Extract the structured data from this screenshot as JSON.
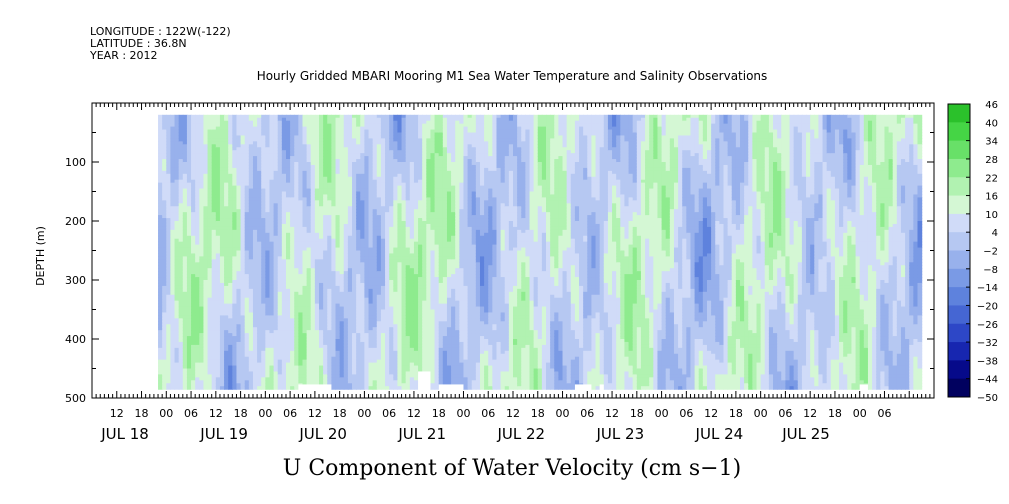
{
  "chart_data": {
    "type": "heatmap",
    "header_lines": [
      "LONGITUDE : 122W(-122)",
      "LATITUDE : 36.8N",
      "YEAR : 2012"
    ],
    "title": "Hourly Gridded MBARI Mooring M1 Sea Water Temperature and Salinity Observations",
    "ylabel": "DEPTH (m)",
    "bottom_title": "U Component of Water Velocity (cm s−1)",
    "y_axis": {
      "min": 0,
      "max": 500,
      "inverted": true,
      "data_top": 20,
      "data_bottom": 485,
      "ticks": [
        {
          "v": 100,
          "label": "100"
        },
        {
          "v": 200,
          "label": "200"
        },
        {
          "v": 300,
          "label": "300"
        },
        {
          "v": 400,
          "label": "400"
        },
        {
          "v": 500,
          "label": "500"
        }
      ]
    },
    "x_axis": {
      "start_hours": 0,
      "end_hours": 204,
      "data_start": 16,
      "data_end": 201,
      "hour_ticks": [
        {
          "h": 6,
          "label": "12"
        },
        {
          "h": 12,
          "label": "18"
        },
        {
          "h": 18,
          "label": "00"
        },
        {
          "h": 24,
          "label": "06"
        },
        {
          "h": 30,
          "label": "12"
        },
        {
          "h": 36,
          "label": "18"
        },
        {
          "h": 42,
          "label": "00"
        },
        {
          "h": 48,
          "label": "06"
        },
        {
          "h": 54,
          "label": "12"
        },
        {
          "h": 60,
          "label": "18"
        },
        {
          "h": 66,
          "label": "00"
        },
        {
          "h": 72,
          "label": "06"
        },
        {
          "h": 78,
          "label": "12"
        },
        {
          "h": 84,
          "label": "18"
        },
        {
          "h": 90,
          "label": "00"
        },
        {
          "h": 96,
          "label": "06"
        },
        {
          "h": 102,
          "label": "12"
        },
        {
          "h": 108,
          "label": "18"
        },
        {
          "h": 114,
          "label": "00"
        },
        {
          "h": 120,
          "label": "06"
        },
        {
          "h": 126,
          "label": "12"
        },
        {
          "h": 132,
          "label": "18"
        },
        {
          "h": 138,
          "label": "00"
        },
        {
          "h": 144,
          "label": "06"
        },
        {
          "h": 150,
          "label": "12"
        },
        {
          "h": 156,
          "label": "18"
        },
        {
          "h": 162,
          "label": "00"
        },
        {
          "h": 168,
          "label": "06"
        },
        {
          "h": 174,
          "label": "12"
        },
        {
          "h": 180,
          "label": "18"
        },
        {
          "h": 186,
          "label": "00"
        },
        {
          "h": 192,
          "label": "06"
        }
      ],
      "day_labels": [
        {
          "h": 8,
          "label": "JUL 18"
        },
        {
          "h": 32,
          "label": "JUL 19"
        },
        {
          "h": 56,
          "label": "JUL 20"
        },
        {
          "h": 80,
          "label": "JUL 21"
        },
        {
          "h": 104,
          "label": "JUL 22"
        },
        {
          "h": 128,
          "label": "JUL 23"
        },
        {
          "h": 152,
          "label": "JUL 24"
        },
        {
          "h": 173,
          "label": "JUL 25"
        }
      ]
    },
    "colorbar": {
      "levels": [
        -50,
        -44,
        -38,
        -32,
        -26,
        -20,
        -14,
        -8,
        -2,
        4,
        10,
        16,
        22,
        28,
        34,
        40,
        46
      ],
      "labels": [
        "46",
        "40",
        "34",
        "28",
        "22",
        "16",
        "10",
        "4",
        "−2",
        "−8",
        "−14",
        "−20",
        "−26",
        "−32",
        "−38",
        "−44",
        "−50"
      ],
      "negative_colors": [
        "#01015f",
        "#060a8a",
        "#1726b0",
        "#2d47c7",
        "#4566d3",
        "#5e82dd",
        "#7a9ae5",
        "#98b1ec",
        "#b6c8f2",
        "#d0dbf8"
      ],
      "positive_colors": [
        "#d4f7d4",
        "#b1f2b1",
        "#8eeb8e",
        "#68e068",
        "#45d545",
        "#2bc12b",
        "#1ea81e",
        "#168f16",
        "#0f750f",
        "#0a5c0a",
        "#064306"
      ]
    },
    "field_profile": {
      "value_range": [
        -18,
        22
      ],
      "description_of_values": "U velocity in cm s-1"
    }
  }
}
